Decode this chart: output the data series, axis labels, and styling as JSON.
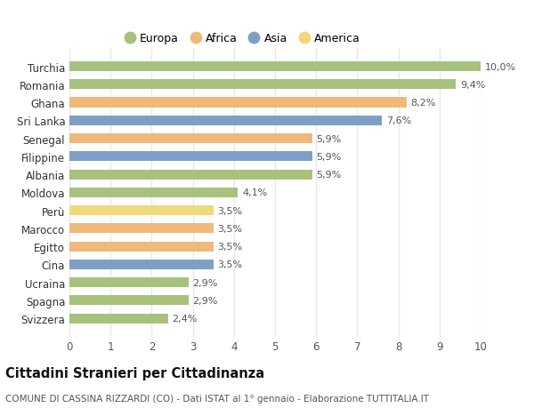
{
  "countries": [
    "Turchia",
    "Romania",
    "Ghana",
    "Sri Lanka",
    "Senegal",
    "Filippine",
    "Albania",
    "Moldova",
    "Perù",
    "Marocco",
    "Egitto",
    "Cina",
    "Ucraina",
    "Spagna",
    "Svizzera"
  ],
  "values": [
    10.0,
    9.4,
    8.2,
    7.6,
    5.9,
    5.9,
    5.9,
    4.1,
    3.5,
    3.5,
    3.5,
    3.5,
    2.9,
    2.9,
    2.4
  ],
  "labels": [
    "10,0%",
    "9,4%",
    "8,2%",
    "7,6%",
    "5,9%",
    "5,9%",
    "5,9%",
    "4,1%",
    "3,5%",
    "3,5%",
    "3,5%",
    "3,5%",
    "2,9%",
    "2,9%",
    "2,4%"
  ],
  "continents": [
    "Europa",
    "Europa",
    "Africa",
    "Asia",
    "Africa",
    "Asia",
    "Europa",
    "Europa",
    "America",
    "Africa",
    "Africa",
    "Asia",
    "Europa",
    "Europa",
    "Europa"
  ],
  "continent_colors": {
    "Europa": "#a8c17c",
    "Africa": "#f0b97a",
    "Asia": "#7f9ec7",
    "America": "#f0d97a"
  },
  "legend_order": [
    "Europa",
    "Africa",
    "Asia",
    "America"
  ],
  "xlim": [
    0,
    10
  ],
  "xticks": [
    0,
    1,
    2,
    3,
    4,
    5,
    6,
    7,
    8,
    9,
    10
  ],
  "title": "Cittadini Stranieri per Cittadinanza",
  "subtitle": "COMUNE DI CASSINA RIZZARDI (CO) - Dati ISTAT al 1° gennaio - Elaborazione TUTTITALIA.IT",
  "background_color": "#ffffff",
  "bar_alpha": 1.0,
  "grid_color": "#e8e8e8",
  "label_fontsize": 8,
  "ytick_fontsize": 8.5,
  "xtick_fontsize": 8.5,
  "title_fontsize": 10.5,
  "subtitle_fontsize": 7.5
}
